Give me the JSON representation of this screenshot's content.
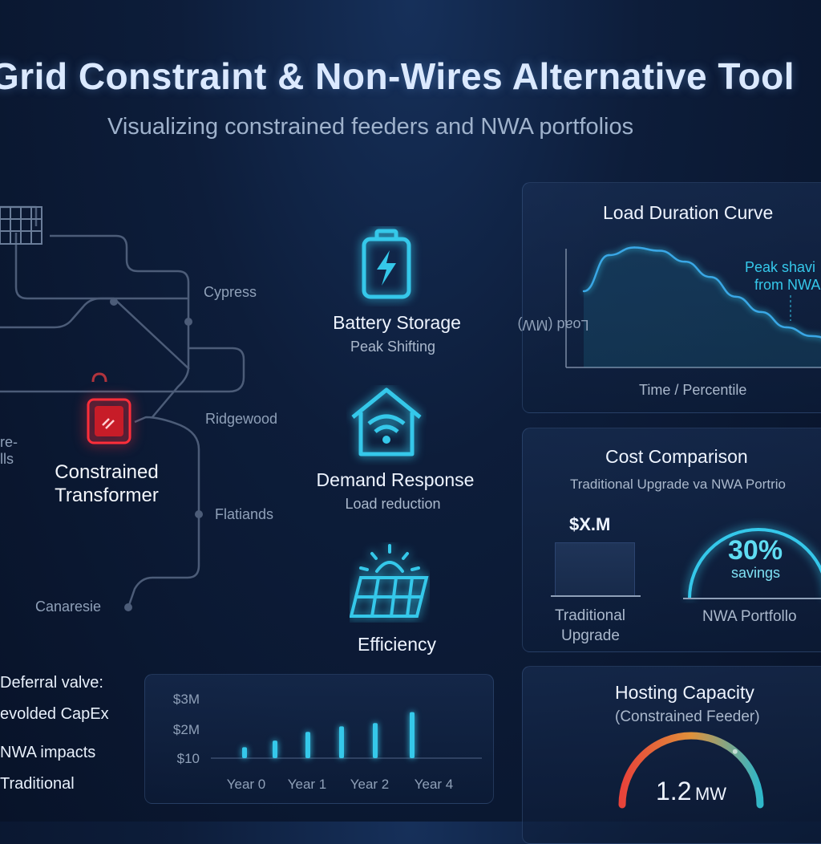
{
  "header": {
    "title": "Grid Constraint & Non-Wires Alternative Tool",
    "subtitle": "Visualizing constrained feeders and NWA portfolios"
  },
  "map": {
    "labels": [
      "Cypress",
      "Ridgewood",
      "Flatiands",
      "Canaresie"
    ],
    "partial_label_line1": "re-",
    "partial_label_line2": "lls",
    "constrained_label_line1": "Constrained",
    "constrained_label_line2": "Transformer"
  },
  "nwa": [
    {
      "name": "Battery Storage",
      "desc": "Peak Shifting",
      "icon": "battery-icon"
    },
    {
      "name": "Demand Response",
      "desc": "Load reduction",
      "icon": "smart-home-icon"
    },
    {
      "name": "Efficiency",
      "desc": "",
      "icon": "solar-panel-icon"
    }
  ],
  "deferral": {
    "heading": "Deferral valve:",
    "items": [
      "evolded CapEx",
      "NWA impacts",
      "Traditional"
    ]
  },
  "colors": {
    "accent": "#35c8ea",
    "alert": "#ff2e3a",
    "gauge_start": "#e8433a",
    "gauge_end": "#2fb7c9"
  },
  "chart_data": [
    {
      "type": "bar",
      "title": "",
      "ytick_labels": [
        "$3M",
        "$2M",
        "$10"
      ],
      "xtick_labels": [
        "Year 0",
        "Year 1",
        "Year 2",
        "Year 4"
      ],
      "values": [
        0.5,
        0.8,
        1.2,
        1.45,
        1.6,
        2.1
      ],
      "ylim": [
        0,
        3.0
      ]
    },
    {
      "type": "line",
      "title": "Load Duration Curve",
      "xlabel": "Time / Percentile",
      "ylabel": "Load (MW)",
      "annotation_line1": "Peak shavi",
      "annotation_line2": "from NWA",
      "x": [
        0,
        10,
        20,
        30,
        40,
        50,
        60,
        70,
        80,
        90,
        100
      ],
      "y": [
        0.55,
        0.88,
        0.95,
        0.92,
        0.82,
        0.68,
        0.5,
        0.36,
        0.22,
        0.14,
        0.1
      ],
      "ylim": [
        0,
        1.1
      ]
    },
    {
      "type": "bar",
      "title": "Cost Comparison",
      "subtitle": "Traditional Upgrade va NWA Portrio",
      "categories": [
        "Traditional Upgrade",
        "NWA Portfollo"
      ],
      "traditional_value_label": "$X.M",
      "traditional_label_line1": "Traditional",
      "traditional_label_line2": "Upgrade",
      "nwa_label": "NWA Portfollo",
      "savings_value": "30%",
      "savings_label": "savings"
    },
    {
      "type": "gauge",
      "title": "Hosting Capacity",
      "subtitle": "(Constrained Feeder)",
      "value_number": "1.2",
      "value_unit": "MW",
      "fill_fraction": 0.72
    }
  ]
}
